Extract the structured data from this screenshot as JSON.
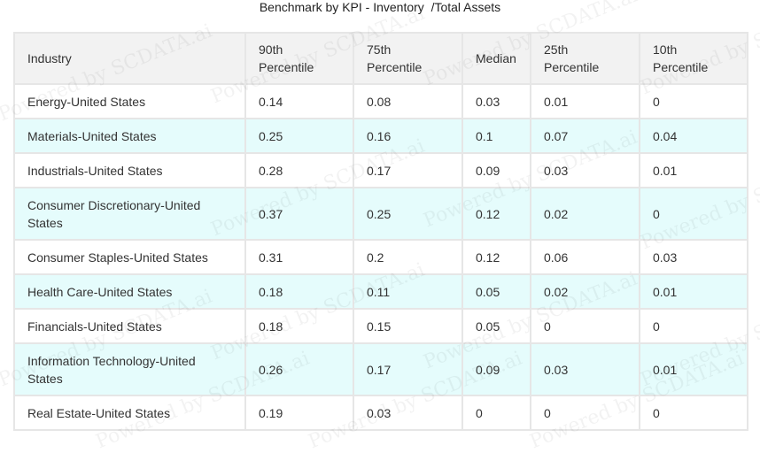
{
  "title": "Benchmark by KPI - Inventory  /Total Assets",
  "colors": {
    "header_bg": "#f2f2f2",
    "stripe_bg": "#e5fcfc",
    "row_bg": "#ffffff",
    "border": "#e6e6e6",
    "text": "#333333"
  },
  "chart_data": {
    "type": "table",
    "title": "Benchmark by KPI - Inventory  /Total Assets",
    "columns": [
      "Industry",
      "90th\nPercentile",
      "75th\nPercentile",
      "Median",
      "25th\nPercentile",
      "10th\nPercentile"
    ],
    "rows": [
      [
        "Energy-United States",
        "0.14",
        "0.08",
        "0.03",
        "0.01",
        "0"
      ],
      [
        "Materials-United States",
        "0.25",
        "0.16",
        "0.1",
        "0.07",
        "0.04"
      ],
      [
        "Industrials-United States",
        "0.28",
        "0.17",
        "0.09",
        "0.03",
        "0.01"
      ],
      [
        "Consumer Discretionary-United States",
        "0.37",
        "0.25",
        "0.12",
        "0.02",
        "0"
      ],
      [
        "Consumer Staples-United States",
        "0.31",
        "0.2",
        "0.12",
        "0.06",
        "0.03"
      ],
      [
        "Health Care-United States",
        "0.18",
        "0.11",
        "0.05",
        "0.02",
        "0.01"
      ],
      [
        "Financials-United States",
        "0.18",
        "0.15",
        "0.05",
        "0",
        "0"
      ],
      [
        "Information Technology-United States",
        "0.26",
        "0.17",
        "0.09",
        "0.03",
        "0.01"
      ],
      [
        "Real Estate-United States",
        "0.19",
        "0.03",
        "0",
        "0",
        "0"
      ]
    ]
  }
}
